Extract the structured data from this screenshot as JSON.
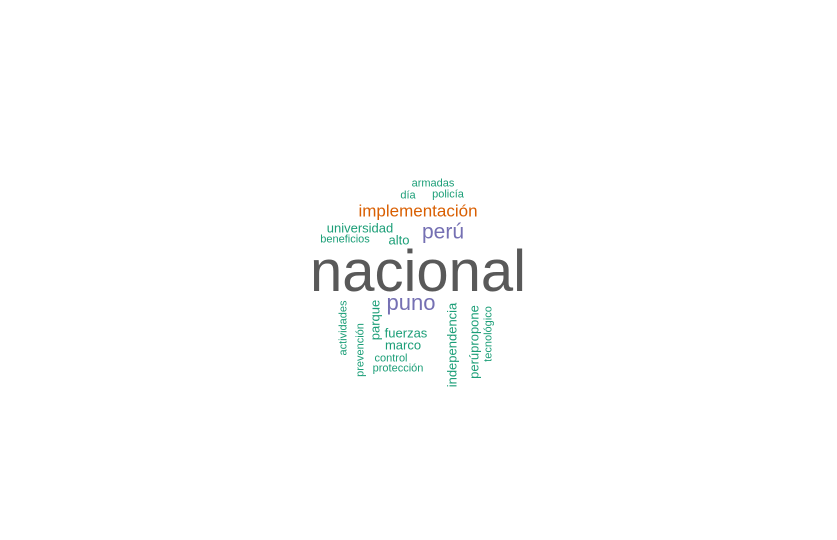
{
  "colors": {
    "gray": "#595959",
    "purple": "#7570b3",
    "orange": "#d95f02",
    "teal": "#1b9e77"
  },
  "words": {
    "nacional": "nacional",
    "implementacion": "implementación",
    "peru": "perú",
    "puno": "puno",
    "armadas": "armadas",
    "dia": "día",
    "policia": "policía",
    "universidad": "universidad",
    "beneficios": "beneficios",
    "alto": "alto",
    "actividades": "actividades",
    "prevencion": "prevención",
    "parque": "parque",
    "fuerzas": "fuerzas",
    "marco": "marco",
    "control": "control",
    "proteccion": "protección",
    "independencia": "independencia",
    "perupropone": "perúpropone",
    "tecnologico": "tecnológico"
  }
}
